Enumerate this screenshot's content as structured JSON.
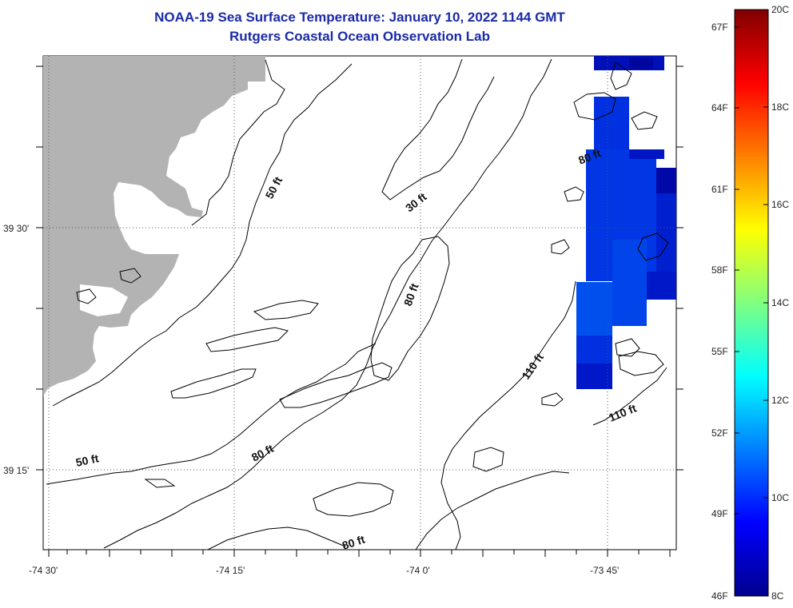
{
  "title": "NOAA-19 Sea Surface Temperature:  January 10, 2022 1144 GMT",
  "subtitle": "Rutgers Coastal Ocean Observation Lab",
  "lat_labels": [
    "39 30'",
    "39 15'"
  ],
  "lon_labels": [
    "-74 30'",
    "-74 15'",
    "-74 0'",
    "-73 45'"
  ],
  "depth_labels": [
    "50 ft",
    "30 ft",
    "80 ft",
    "80 ft",
    "110 ft",
    "110 ft",
    "50 ft",
    "80 ft",
    "80 ft"
  ],
  "colorbar": {
    "fahrenheit": [
      "67F",
      "64F",
      "61F",
      "58F",
      "55F",
      "52F",
      "49F",
      "46F"
    ],
    "celsius": [
      "20C",
      "18C",
      "16C",
      "14C",
      "12C",
      "10C",
      "8C"
    ],
    "range_c": [
      8,
      20
    ],
    "scale": "jet"
  },
  "colors": {
    "land": "#b3b3b3",
    "title": "#1a2aa8",
    "sst_cold": "#0022d8"
  }
}
